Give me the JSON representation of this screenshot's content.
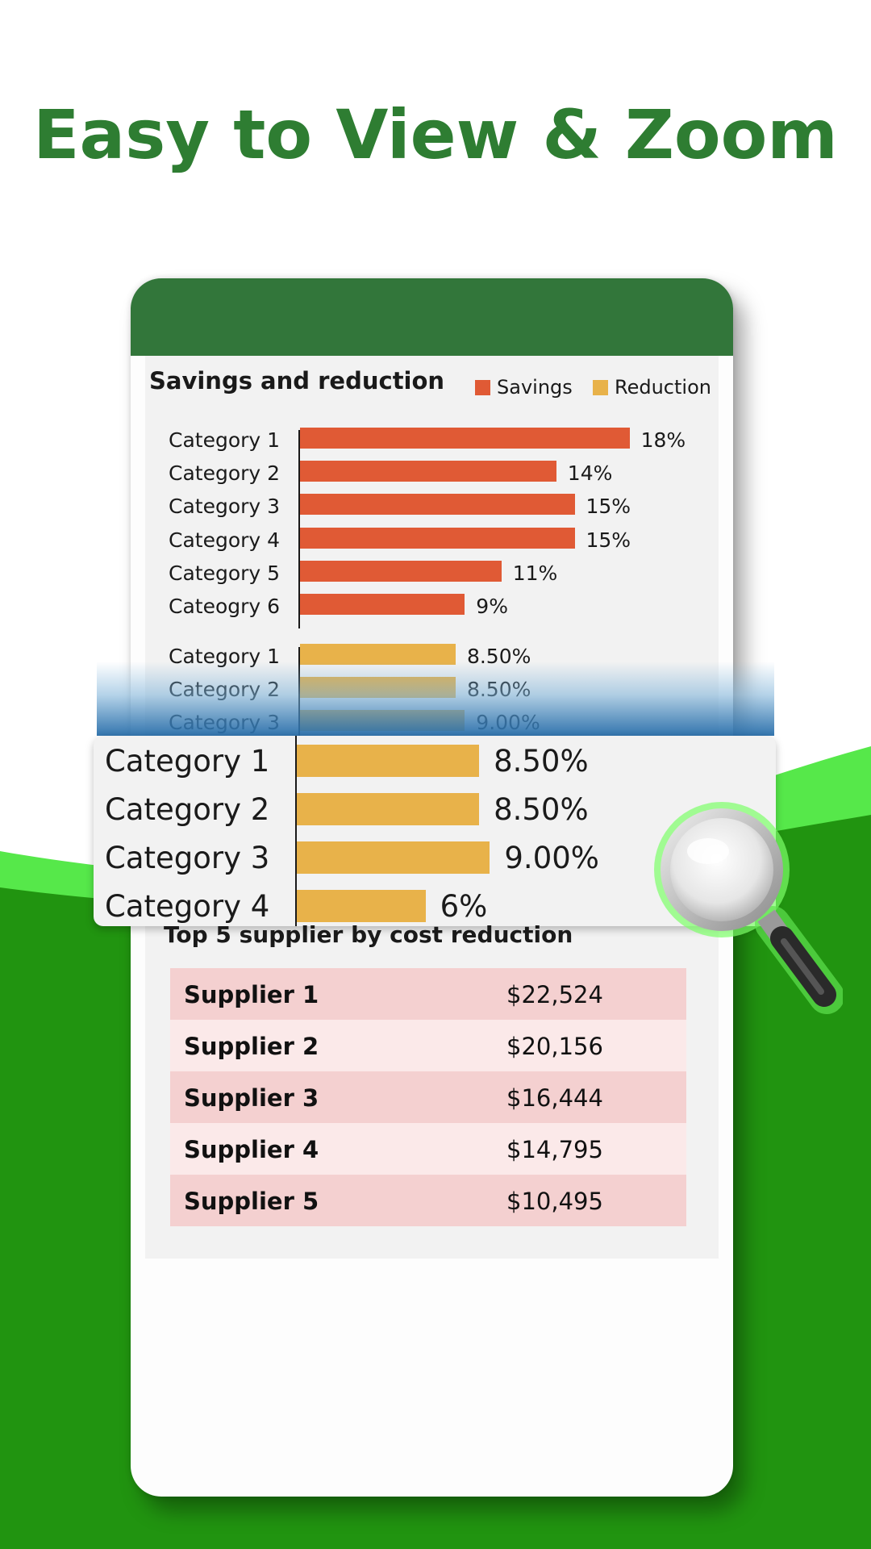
{
  "headline": "Easy to View & Zoom",
  "colors": {
    "headline": "#2e7d32",
    "phone_header": "#32763a",
    "savings": "#e05a35",
    "reduction": "#e8b24a",
    "row_dark": "#f4d0d0",
    "row_light": "#fbe9e9",
    "wave_green": "#219410",
    "wave_light": "#56e84a"
  },
  "chart": {
    "title": "Savings and reduction",
    "legend": {
      "savings": "Savings",
      "reduction": "Reduction"
    }
  },
  "chart_data": {
    "type": "bar",
    "title": "Savings and reduction",
    "series": [
      {
        "name": "Savings",
        "categories": [
          "Category 1",
          "Category 2",
          "Category 3",
          "Category 4",
          "Category 5",
          "Cateogry 6"
        ],
        "values": [
          18,
          14,
          15,
          15,
          11,
          9
        ],
        "labels": [
          "18%",
          "14%",
          "15%",
          "15%",
          "11%",
          "9%"
        ]
      },
      {
        "name": "Reduction",
        "categories": [
          "Category 1",
          "Category 2",
          "Category 3"
        ],
        "values": [
          8.5,
          8.5,
          9.0
        ],
        "labels": [
          "8.50%",
          "8.50%",
          "9.00%"
        ]
      }
    ],
    "orientation": "horizontal",
    "legend_position": "top-right"
  },
  "zoom": {
    "items": [
      {
        "label": "Category 1",
        "value": 8.5,
        "text": "8.50%"
      },
      {
        "label": "Category 2",
        "value": 8.5,
        "text": "8.50%"
      },
      {
        "label": "Category 3",
        "value": 9.0,
        "text": "9.00%"
      },
      {
        "label": "Category 4",
        "value": 6,
        "text": "6%"
      }
    ]
  },
  "table": {
    "title": "Top 5 supplier by cost reduction",
    "rows": [
      {
        "name": "Supplier 1",
        "amount": "$22,524"
      },
      {
        "name": "Supplier 2",
        "amount": "$20,156"
      },
      {
        "name": "Supplier 3",
        "amount": "$16,444"
      },
      {
        "name": "Supplier 4",
        "amount": "$14,795"
      },
      {
        "name": "Supplier 5",
        "amount": "$10,495"
      }
    ]
  },
  "icons": {
    "magnifier": "magnifier-icon"
  }
}
